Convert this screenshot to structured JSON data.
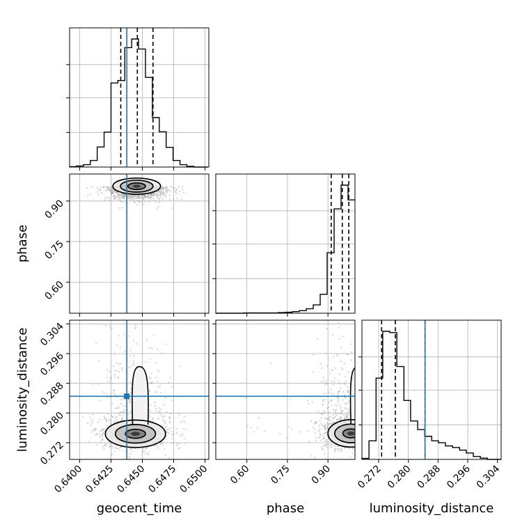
{
  "chart_data": {
    "type": "corner",
    "parameters": [
      "geocent_time",
      "phase",
      "luminosity_distance"
    ],
    "axis_labels": {
      "geocent_time": "geocent_time",
      "phase": "phase",
      "luminosity_distance": "luminosity_distance"
    },
    "ranges": {
      "geocent_time": [
        0.6392,
        0.6503
      ],
      "phase": [
        0.485,
        1.0
      ],
      "luminosity_distance": [
        0.2675,
        0.305
      ]
    },
    "ticks": {
      "geocent_time": [
        0.64,
        0.6425,
        0.645,
        0.6475,
        0.65
      ],
      "phase": [
        0.6,
        0.75,
        0.9
      ],
      "luminosity_distance": [
        0.272,
        0.28,
        0.288,
        0.296,
        0.304
      ]
    },
    "tick_labels": {
      "geocent_time": [
        "0.6400",
        "0.6425",
        "0.6450",
        "0.6475",
        "0.6500"
      ],
      "phase": [
        "0.60",
        "0.75",
        "0.90"
      ],
      "luminosity_distance": [
        "0.272",
        "0.280",
        "0.288",
        "0.296",
        "0.304"
      ]
    },
    "truths": {
      "geocent_time": 0.64376,
      "luminosity_distance": 0.2845
    },
    "quantiles": {
      "geocent_time": [
        0.64328,
        0.6446,
        0.64585
      ],
      "phase": [
        0.912,
        0.953,
        0.977
      ],
      "luminosity_distance": [
        0.2728,
        0.2765,
        0.2845
      ]
    },
    "histograms": {
      "geocent_time": {
        "bin_edges": [
          0.6392,
          0.63975,
          0.6403,
          0.64085,
          0.6414,
          0.64195,
          0.6425,
          0.64305,
          0.6436,
          0.64415,
          0.6447,
          0.64525,
          0.6458,
          0.64635,
          0.6469,
          0.64745,
          0.648,
          0.64855,
          0.6491,
          0.64965,
          0.6502
        ],
        "counts": [
          1,
          3,
          7,
          19,
          58,
          101,
          243,
          250,
          345,
          370,
          341,
          259,
          143,
          102,
          57,
          19,
          7,
          2,
          0,
          0
        ]
      },
      "phase": {
        "bin_edges": [
          0.485,
          0.5108,
          0.5365,
          0.5623,
          0.588,
          0.6138,
          0.6395,
          0.6653,
          0.691,
          0.7168,
          0.7425,
          0.7683,
          0.794,
          0.8198,
          0.8455,
          0.8713,
          0.897,
          0.9228,
          0.9485,
          0.9743,
          1.0
        ],
        "counts": [
          0,
          0,
          0,
          0,
          1,
          1,
          1,
          1,
          1,
          2,
          3,
          5,
          8,
          14,
          26,
          59,
          189,
          326,
          400,
          354
        ]
      },
      "luminosity_distance": {
        "bin_edges": [
          0.2675,
          0.2694,
          0.2713,
          0.2731,
          0.275,
          0.2769,
          0.2788,
          0.2806,
          0.2825,
          0.2844,
          0.2863,
          0.2881,
          0.29,
          0.2919,
          0.2938,
          0.2956,
          0.2975,
          0.2994,
          0.3013,
          0.3031,
          0.305
        ],
        "counts": [
          3,
          58,
          254,
          400,
          396,
          290,
          184,
          120,
          93,
          72,
          58,
          52,
          42,
          37,
          29,
          20,
          9,
          4,
          0,
          0
        ]
      }
    },
    "contours": [
      {
        "x": "geocent_time",
        "y": "phase",
        "center": [
          0.64455,
          0.955
        ],
        "levels": [
          {
            "rx": 0.0007,
            "ry": 0.012
          },
          {
            "rx": 0.0013,
            "ry": 0.022
          },
          {
            "rx": 0.0019,
            "ry": 0.03
          }
        ]
      },
      {
        "x": "geocent_time",
        "y": "luminosity_distance",
        "center": [
          0.64445,
          0.2744
        ],
        "levels": [
          {
            "rx": 0.0008,
            "ry": 0.0012
          },
          {
            "rx": 0.0016,
            "ry": 0.0025
          },
          {
            "rx": 0.0024,
            "ry": 0.0037
          }
        ],
        "tail_top": 0.2925
      },
      {
        "x": "phase",
        "y": "luminosity_distance",
        "center": [
          0.985,
          0.2745
        ],
        "levels": [
          {
            "rx": 0.03,
            "ry": 0.0012
          },
          {
            "rx": 0.06,
            "ry": 0.0025
          },
          {
            "rx": 0.085,
            "ry": 0.0037
          }
        ],
        "tail_top": 0.2925
      }
    ],
    "grid": true,
    "legend": "none",
    "colors": {
      "truth": "#1f77b4",
      "histogram": "#000000",
      "quantile": "#000000",
      "scatter": "#9e9e9e",
      "grid": "#b0b0b0"
    }
  }
}
